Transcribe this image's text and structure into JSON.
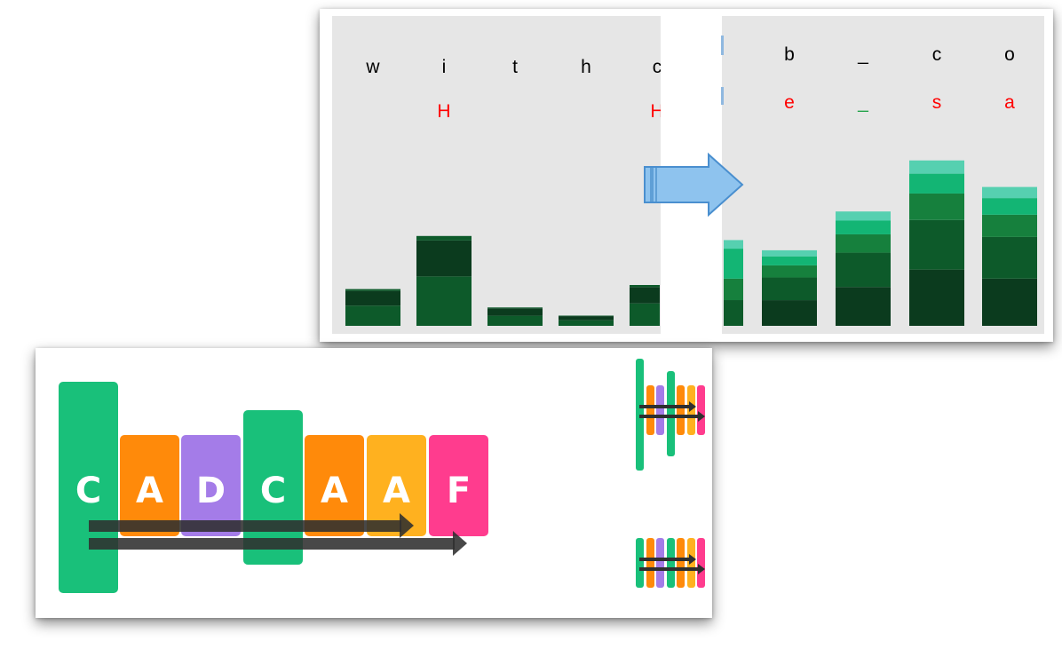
{
  "colors": {
    "panel_bg": "#e6e6e6",
    "bar_darkest": "#0b3b1e",
    "bar_dark": "#0d5a2a",
    "bar_mid": "#16803d",
    "bar_light": "#13b574",
    "bar_teal": "#56d0b0",
    "red_text": "#ff0000",
    "green_text": "#22a34a",
    "arrow_fill": "#8ec3ee",
    "arrow_stroke": "#4a8fcf",
    "tile_green": "#19c07a",
    "tile_orange": "#ff8a0a",
    "tile_purple": "#a47ce8",
    "tile_amber": "#ffb11f",
    "tile_pink": "#ff3c8e",
    "seq_arrow": "#2f2f2f"
  },
  "left_view": {
    "top_letters": [
      "w",
      "i",
      "t",
      "h",
      "c"
    ],
    "red_letters": [
      "",
      "H",
      "",
      "",
      "H"
    ],
    "bar_levels": [
      0.18,
      0.44,
      0.09,
      0.05,
      0.2
    ]
  },
  "right_view": {
    "top_letters": [
      "b",
      "_",
      "c",
      "o"
    ],
    "predicted_letters": [
      "e",
      "_",
      "s",
      "a"
    ],
    "bar_levels": [
      0.37,
      0.56,
      0.81,
      0.68
    ]
  },
  "transition_icon": "right-arrow-icon",
  "sequence": {
    "tiles": [
      {
        "letter": "C",
        "color": "tile_green",
        "tall": true
      },
      {
        "letter": "A",
        "color": "tile_orange",
        "tall": false
      },
      {
        "letter": "D",
        "color": "tile_purple",
        "tall": false
      },
      {
        "letter": "C",
        "color": "tile_green",
        "tall": true
      },
      {
        "letter": "A",
        "color": "tile_orange",
        "tall": false
      },
      {
        "letter": "A",
        "color": "tile_amber",
        "tall": false
      },
      {
        "letter": "F",
        "color": "tile_pink",
        "tall": false
      }
    ]
  }
}
